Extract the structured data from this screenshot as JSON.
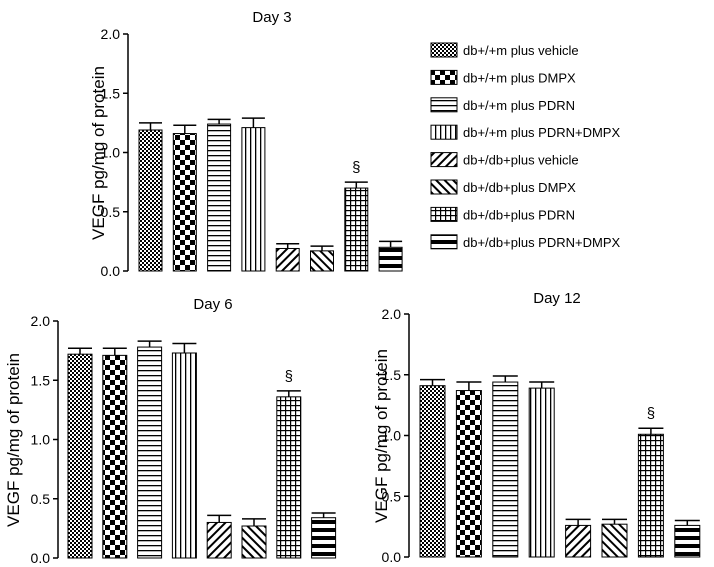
{
  "series_legend": [
    {
      "label": "db+/+m plus vehicle",
      "pattern": "dense-check"
    },
    {
      "label": "db+/+m plus DMPX",
      "pattern": "large-check"
    },
    {
      "label": "db+/+m plus PDRN",
      "pattern": "hlines"
    },
    {
      "label": "db+/+m plus PDRN+DMPX",
      "pattern": "vlines"
    },
    {
      "label": "db+/db+plus vehicle",
      "pattern": "diag-up"
    },
    {
      "label": "db+/db+plus DMPX",
      "pattern": "diag-down"
    },
    {
      "label": "db+/db+plus PDRN",
      "pattern": "grid"
    },
    {
      "label": "db+/db+plus PDRN+DMPX",
      "pattern": "thick-hbars"
    }
  ],
  "chart_data": [
    {
      "type": "bar",
      "title": "Day 3",
      "ylabel": "VEGF pg/mg of protein",
      "xlabel": "",
      "ylim": [
        0,
        2.0
      ],
      "yticks": [
        "0.0",
        "0.5",
        "1.0",
        "1.5",
        "2.0"
      ],
      "categories": [
        "db+/+m plus vehicle",
        "db+/+m plus DMPX",
        "db+/+m plus PDRN",
        "db+/+m plus PDRN+DMPX",
        "db+/db+plus vehicle",
        "db+/db+plus DMPX",
        "db+/db+plus PDRN",
        "db+/db+plus PDRN+DMPX"
      ],
      "values": [
        1.19,
        1.16,
        1.24,
        1.21,
        0.19,
        0.17,
        0.7,
        0.2
      ],
      "errors": [
        0.06,
        0.07,
        0.04,
        0.08,
        0.04,
        0.04,
        0.05,
        0.05
      ],
      "annotations": [
        {
          "index": 6,
          "text": "§"
        }
      ]
    },
    {
      "type": "bar",
      "title": "Day 6",
      "ylabel": "VEGF pg/mg of protein",
      "xlabel": "",
      "ylim": [
        0,
        2.0
      ],
      "yticks": [
        "0.0",
        "0.5",
        "1.0",
        "1.5",
        "2.0"
      ],
      "categories": [
        "db+/+m plus vehicle",
        "db+/+m plus DMPX",
        "db+/+m plus PDRN",
        "db+/+m plus PDRN+DMPX",
        "db+/db+plus vehicle",
        "db+/db+plus DMPX",
        "db+/db+plus PDRN",
        "db+/db+plus PDRN+DMPX"
      ],
      "values": [
        1.72,
        1.71,
        1.78,
        1.73,
        0.3,
        0.27,
        1.36,
        0.34
      ],
      "errors": [
        0.05,
        0.06,
        0.05,
        0.08,
        0.06,
        0.06,
        0.05,
        0.04
      ],
      "annotations": [
        {
          "index": 6,
          "text": "§"
        }
      ]
    },
    {
      "type": "bar",
      "title": "Day 12",
      "ylabel": "VEGF pg/mg of protein",
      "xlabel": "",
      "ylim": [
        0,
        2.0
      ],
      "yticks": [
        "0.0",
        "0.5",
        "1.0",
        "1.5",
        "2.0"
      ],
      "categories": [
        "db+/+m plus vehicle",
        "db+/+m plus DMPX",
        "db+/+m plus PDRN",
        "db+/+m plus PDRN+DMPX",
        "db+/db+plus vehicle",
        "db+/db+plus DMPX",
        "db+/db+plus PDRN",
        "db+/db+plus PDRN+DMPX"
      ],
      "values": [
        1.41,
        1.37,
        1.44,
        1.39,
        0.26,
        0.27,
        1.01,
        0.26
      ],
      "errors": [
        0.05,
        0.07,
        0.05,
        0.05,
        0.05,
        0.04,
        0.05,
        0.04
      ],
      "annotations": [
        {
          "index": 6,
          "text": "§"
        }
      ]
    }
  ]
}
